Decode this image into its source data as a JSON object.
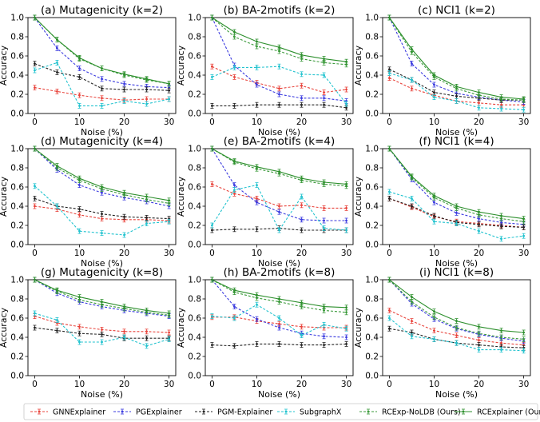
{
  "chart_data": [
    {
      "type": "line",
      "title": "(a) Mutagenicity (k=2)",
      "xlabel": "Noise (%)",
      "ylabel": "Accuracy",
      "x": [
        0,
        5,
        10,
        15,
        20,
        25,
        30
      ],
      "xlim": [
        -1.5,
        31.5
      ],
      "ylim": [
        0,
        1
      ],
      "xticks": [
        "0",
        "10",
        "20",
        "30"
      ],
      "yticks": [
        "0.0",
        "0.2",
        "0.4",
        "0.6",
        "0.8",
        "1.0"
      ],
      "series": [
        {
          "name": "GNNExplainer",
          "values": [
            0.27,
            0.23,
            0.19,
            0.16,
            0.14,
            0.15,
            0.15
          ]
        },
        {
          "name": "PGExplainer",
          "values": [
            1.0,
            0.68,
            0.47,
            0.36,
            0.31,
            0.28,
            0.27
          ]
        },
        {
          "name": "PGM-Explainer",
          "values": [
            0.52,
            0.43,
            0.38,
            0.26,
            0.25,
            0.25,
            0.24
          ]
        },
        {
          "name": "SubgraphX",
          "values": [
            0.45,
            0.53,
            0.08,
            0.08,
            0.13,
            0.1,
            0.15
          ]
        },
        {
          "name": "RCExp-NoLDB (Ours)",
          "values": [
            1.0,
            0.77,
            0.57,
            0.47,
            0.4,
            0.35,
            0.31
          ]
        },
        {
          "name": "RCExplainer (Ours)",
          "values": [
            1.0,
            0.77,
            0.58,
            0.47,
            0.41,
            0.36,
            0.31
          ]
        }
      ]
    },
    {
      "type": "line",
      "title": "(b) BA-2motifs (k=2)",
      "xlabel": "Noise (%)",
      "ylabel": "Accuracy",
      "x": [
        0,
        5,
        10,
        15,
        20,
        25,
        30
      ],
      "xlim": [
        -1.5,
        31.5
      ],
      "ylim": [
        0,
        1
      ],
      "xticks": [
        "0",
        "10",
        "20",
        "30"
      ],
      "yticks": [
        "0.0",
        "0.2",
        "0.4",
        "0.6",
        "0.8",
        "1.0"
      ],
      "series": [
        {
          "name": "GNNExplainer",
          "values": [
            0.49,
            0.38,
            0.32,
            0.26,
            0.29,
            0.22,
            0.25
          ]
        },
        {
          "name": "PGExplainer",
          "values": [
            1.0,
            0.5,
            0.3,
            0.2,
            0.16,
            0.16,
            0.13
          ]
        },
        {
          "name": "PGM-Explainer",
          "values": [
            0.08,
            0.08,
            0.09,
            0.09,
            0.09,
            0.09,
            0.06
          ]
        },
        {
          "name": "SubgraphX",
          "values": [
            0.38,
            0.48,
            0.48,
            0.49,
            0.41,
            0.4,
            0.1
          ]
        },
        {
          "name": "RCExp-NoLDB (Ours)",
          "values": [
            1.0,
            0.8,
            0.7,
            0.65,
            0.57,
            0.53,
            0.51
          ]
        },
        {
          "name": "RCExplainer (Ours)",
          "values": [
            1.0,
            0.85,
            0.75,
            0.69,
            0.61,
            0.57,
            0.54
          ]
        }
      ]
    },
    {
      "type": "line",
      "title": "(c) NCI1 (k=2)",
      "xlabel": "Noise (%)",
      "ylabel": "Accuracy",
      "x": [
        0,
        5,
        10,
        15,
        20,
        25,
        30
      ],
      "xlim": [
        -1.5,
        31.5
      ],
      "ylim": [
        0,
        1
      ],
      "xticks": [
        "0",
        "10",
        "20",
        "30"
      ],
      "yticks": [
        "0.0",
        "0.2",
        "0.4",
        "0.6",
        "0.8",
        "1.0"
      ],
      "series": [
        {
          "name": "GNNExplainer",
          "values": [
            0.37,
            0.26,
            0.19,
            0.13,
            0.11,
            0.09,
            0.09
          ]
        },
        {
          "name": "PGExplainer",
          "values": [
            1.0,
            0.52,
            0.3,
            0.21,
            0.17,
            0.14,
            0.12
          ]
        },
        {
          "name": "PGM-Explainer",
          "values": [
            0.46,
            0.35,
            0.22,
            0.18,
            0.16,
            0.14,
            0.14
          ]
        },
        {
          "name": "SubgraphX",
          "values": [
            0.42,
            0.35,
            0.17,
            0.13,
            0.06,
            0.05,
            0.04
          ]
        },
        {
          "name": "RCExp-NoLDB (Ours)",
          "values": [
            1.0,
            0.64,
            0.38,
            0.26,
            0.19,
            0.15,
            0.14
          ]
        },
        {
          "name": "RCExplainer (Ours)",
          "values": [
            1.0,
            0.67,
            0.4,
            0.28,
            0.22,
            0.17,
            0.15
          ]
        }
      ]
    },
    {
      "type": "line",
      "title": "(d) Mutagenicity (k=4)",
      "xlabel": "Noise (%)",
      "ylabel": "Accuracy",
      "x": [
        0,
        5,
        10,
        15,
        20,
        25,
        30
      ],
      "xlim": [
        -1.5,
        31.5
      ],
      "ylim": [
        0,
        1
      ],
      "xticks": [
        "0",
        "10",
        "20",
        "30"
      ],
      "yticks": [
        "0.0",
        "0.2",
        "0.4",
        "0.6",
        "0.8",
        "1.0"
      ],
      "series": [
        {
          "name": "GNNExplainer",
          "values": [
            0.4,
            0.37,
            0.31,
            0.27,
            0.26,
            0.26,
            0.25
          ]
        },
        {
          "name": "PGExplainer",
          "values": [
            1.0,
            0.78,
            0.62,
            0.54,
            0.49,
            0.45,
            0.4
          ]
        },
        {
          "name": "PGM-Explainer",
          "values": [
            0.48,
            0.4,
            0.37,
            0.32,
            0.29,
            0.28,
            0.27
          ]
        },
        {
          "name": "SubgraphX",
          "values": [
            0.61,
            0.4,
            0.14,
            0.12,
            0.1,
            0.22,
            0.24
          ]
        },
        {
          "name": "RCExp-NoLDB (Ours)",
          "values": [
            1.0,
            0.8,
            0.67,
            0.58,
            0.52,
            0.47,
            0.43
          ]
        },
        {
          "name": "RCExplainer (Ours)",
          "values": [
            1.0,
            0.82,
            0.69,
            0.6,
            0.54,
            0.5,
            0.46
          ]
        }
      ]
    },
    {
      "type": "line",
      "title": "(e) BA-2motifs (k=4)",
      "xlabel": "Noise (%)",
      "ylabel": "Accuracy",
      "x": [
        0,
        5,
        10,
        15,
        20,
        25,
        30
      ],
      "xlim": [
        -1.5,
        31.5
      ],
      "ylim": [
        0,
        1
      ],
      "xticks": [
        "0",
        "10",
        "20",
        "30"
      ],
      "yticks": [
        "0.0",
        "0.2",
        "0.4",
        "0.6",
        "0.8",
        "1.0"
      ],
      "series": [
        {
          "name": "GNNExplainer",
          "values": [
            0.63,
            0.53,
            0.48,
            0.4,
            0.41,
            0.38,
            0.38
          ]
        },
        {
          "name": "PGExplainer",
          "values": [
            1.0,
            0.62,
            0.44,
            0.34,
            0.26,
            0.25,
            0.25
          ]
        },
        {
          "name": "PGM-Explainer",
          "values": [
            0.15,
            0.16,
            0.16,
            0.17,
            0.15,
            0.15,
            0.15
          ]
        },
        {
          "name": "SubgraphX",
          "values": [
            0.2,
            0.57,
            0.62,
            0.15,
            0.5,
            0.17,
            0.15
          ]
        },
        {
          "name": "RCExp-NoLDB (Ours)",
          "values": [
            1.0,
            0.86,
            0.79,
            0.74,
            0.67,
            0.63,
            0.61
          ]
        },
        {
          "name": "RCExplainer (Ours)",
          "values": [
            1.0,
            0.87,
            0.81,
            0.76,
            0.69,
            0.65,
            0.63
          ]
        }
      ]
    },
    {
      "type": "line",
      "title": "(f) NCI1 (k=4)",
      "xlabel": "Noise (%)",
      "ylabel": "Accuracy",
      "x": [
        0,
        5,
        10,
        15,
        20,
        25,
        30
      ],
      "xlim": [
        -1.5,
        31.5
      ],
      "ylim": [
        0,
        1
      ],
      "xticks": [
        "0",
        "10",
        "20",
        "30"
      ],
      "yticks": [
        "0.0",
        "0.2",
        "0.4",
        "0.6",
        "0.8",
        "1.0"
      ],
      "series": [
        {
          "name": "GNNExplainer",
          "values": [
            0.48,
            0.39,
            0.29,
            0.24,
            0.22,
            0.2,
            0.18
          ]
        },
        {
          "name": "PGExplainer",
          "values": [
            1.0,
            0.68,
            0.44,
            0.33,
            0.27,
            0.23,
            0.21
          ]
        },
        {
          "name": "PGM-Explainer",
          "values": [
            0.48,
            0.4,
            0.3,
            0.23,
            0.21,
            0.19,
            0.18
          ]
        },
        {
          "name": "SubgraphX",
          "values": [
            0.55,
            0.48,
            0.24,
            0.22,
            0.14,
            0.06,
            0.09
          ]
        },
        {
          "name": "RCExp-NoLDB (Ours)",
          "values": [
            1.0,
            0.7,
            0.49,
            0.38,
            0.31,
            0.27,
            0.24
          ]
        },
        {
          "name": "RCExplainer (Ours)",
          "values": [
            1.0,
            0.71,
            0.51,
            0.4,
            0.34,
            0.3,
            0.27
          ]
        }
      ]
    },
    {
      "type": "line",
      "title": "(g) Mutagenicity (k=8)",
      "xlabel": "Noise (%)",
      "ylabel": "Accuracy",
      "x": [
        0,
        5,
        10,
        15,
        20,
        25,
        30
      ],
      "xlim": [
        -1.5,
        31.5
      ],
      "ylim": [
        0,
        1
      ],
      "xticks": [
        "0",
        "10",
        "20",
        "30"
      ],
      "yticks": [
        "0.0",
        "0.2",
        "0.4",
        "0.6",
        "0.8",
        "1.0"
      ],
      "series": [
        {
          "name": "GNNExplainer",
          "values": [
            0.62,
            0.55,
            0.51,
            0.48,
            0.46,
            0.46,
            0.45
          ]
        },
        {
          "name": "PGExplainer",
          "values": [
            1.0,
            0.86,
            0.77,
            0.72,
            0.68,
            0.65,
            0.62
          ]
        },
        {
          "name": "PGM-Explainer",
          "values": [
            0.5,
            0.47,
            0.44,
            0.43,
            0.39,
            0.39,
            0.39
          ]
        },
        {
          "name": "SubgraphX",
          "values": [
            0.65,
            0.58,
            0.35,
            0.35,
            0.4,
            0.31,
            0.38
          ]
        },
        {
          "name": "RCExp-NoLDB (Ours)",
          "values": [
            1.0,
            0.88,
            0.79,
            0.74,
            0.7,
            0.66,
            0.63
          ]
        },
        {
          "name": "RCExplainer (Ours)",
          "values": [
            1.0,
            0.89,
            0.82,
            0.77,
            0.72,
            0.68,
            0.65
          ]
        }
      ]
    },
    {
      "type": "line",
      "title": "(h) BA-2motifs (k=8)",
      "xlabel": "Noise (%)",
      "ylabel": "Accuracy",
      "x": [
        0,
        5,
        10,
        15,
        20,
        25,
        30
      ],
      "xlim": [
        -1.5,
        31.5
      ],
      "ylim": [
        0,
        1
      ],
      "xticks": [
        "0",
        "10",
        "20",
        "30"
      ],
      "yticks": [
        "0.0",
        "0.2",
        "0.4",
        "0.6",
        "0.8",
        "1.0"
      ],
      "series": [
        {
          "name": "GNNExplainer",
          "values": [
            0.61,
            0.61,
            0.57,
            0.54,
            0.51,
            0.5,
            0.5
          ]
        },
        {
          "name": "PGExplainer",
          "values": [
            1.0,
            0.72,
            0.59,
            0.5,
            0.44,
            0.41,
            0.4
          ]
        },
        {
          "name": "PGM-Explainer",
          "values": [
            0.32,
            0.31,
            0.33,
            0.33,
            0.32,
            0.32,
            0.33
          ]
        },
        {
          "name": "SubgraphX",
          "values": [
            0.62,
            0.6,
            0.74,
            0.6,
            0.42,
            0.53,
            0.49
          ]
        },
        {
          "name": "RCExp-NoLDB (Ours)",
          "values": [
            1.0,
            0.87,
            0.81,
            0.77,
            0.72,
            0.68,
            0.66
          ]
        },
        {
          "name": "RCExplainer (Ours)",
          "values": [
            1.0,
            0.89,
            0.84,
            0.8,
            0.76,
            0.72,
            0.71
          ]
        }
      ]
    },
    {
      "type": "line",
      "title": "(i) NCI1 (k=8)",
      "xlabel": "Noise (%)",
      "ylabel": "Accuracy",
      "x": [
        0,
        5,
        10,
        15,
        20,
        25,
        30
      ],
      "xlim": [
        -1.5,
        31.5
      ],
      "ylim": [
        0,
        1
      ],
      "xticks": [
        "0",
        "10",
        "20",
        "30"
      ],
      "yticks": [
        "0.0",
        "0.2",
        "0.4",
        "0.6",
        "0.8",
        "1.0"
      ],
      "series": [
        {
          "name": "GNNExplainer",
          "values": [
            0.68,
            0.57,
            0.47,
            0.42,
            0.37,
            0.34,
            0.32
          ]
        },
        {
          "name": "PGExplainer",
          "values": [
            1.0,
            0.75,
            0.59,
            0.49,
            0.43,
            0.39,
            0.36
          ]
        },
        {
          "name": "PGM-Explainer",
          "values": [
            0.49,
            0.45,
            0.38,
            0.34,
            0.32,
            0.3,
            0.29
          ]
        },
        {
          "name": "SubgraphX",
          "values": [
            0.6,
            0.41,
            0.38,
            0.34,
            0.27,
            0.27,
            0.26
          ]
        },
        {
          "name": "RCExp-NoLDB (Ours)",
          "values": [
            1.0,
            0.77,
            0.61,
            0.5,
            0.44,
            0.4,
            0.38
          ]
        },
        {
          "name": "RCExplainer (Ours)",
          "values": [
            1.0,
            0.82,
            0.67,
            0.57,
            0.51,
            0.47,
            0.45
          ]
        }
      ]
    }
  ],
  "legend": {
    "placement": "bottom",
    "entries": [
      {
        "name": "GNNExplainer",
        "color": "#e8423a",
        "style": "dashed"
      },
      {
        "name": "PGExplainer",
        "color": "#3a3adf",
        "style": "dashed"
      },
      {
        "name": "PGM-Explainer",
        "color": "#222222",
        "style": "dashed"
      },
      {
        "name": "SubgraphX",
        "color": "#22c3cf",
        "style": "dashed"
      },
      {
        "name": "RCExp-NoLDB (Ours)",
        "color": "#3a9a3a",
        "style": "dashed"
      },
      {
        "name": "RCExplainer (Ours)",
        "color": "#2c8f2c",
        "style": "solid"
      }
    ]
  }
}
